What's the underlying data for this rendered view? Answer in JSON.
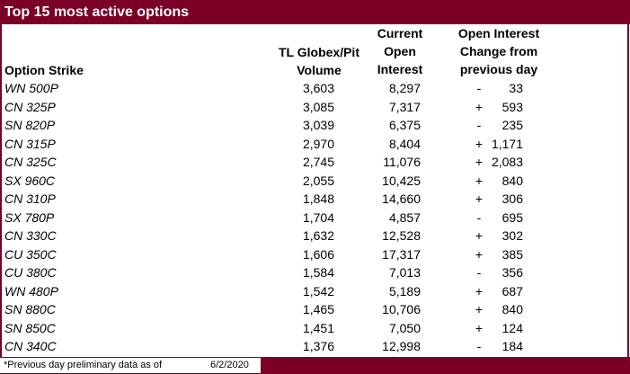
{
  "title": "Top 15 most active options",
  "headers": {
    "strike": "Option Strike",
    "volume_line1": "TL Globex/Pit",
    "volume_line2": "Volume",
    "oi_line1": "Current",
    "oi_line2": "Open",
    "oi_line3": "Interest",
    "chg_line1": "Open Interest",
    "chg_line2": "Change from",
    "chg_line3": "previous day"
  },
  "rows": [
    {
      "strike": "WN 500P",
      "volume": "3,603",
      "oi": "8,297",
      "sign": "-",
      "change": "33"
    },
    {
      "strike": "CN 325P",
      "volume": "3,085",
      "oi": "7,317",
      "sign": "+",
      "change": "593"
    },
    {
      "strike": "SN 820P",
      "volume": "3,039",
      "oi": "6,375",
      "sign": "-",
      "change": "235"
    },
    {
      "strike": "CN 315P",
      "volume": "2,970",
      "oi": "8,404",
      "sign": "+",
      "change": "1,171"
    },
    {
      "strike": "CN 325C",
      "volume": "2,745",
      "oi": "11,076",
      "sign": "+",
      "change": "2,083"
    },
    {
      "strike": "SX 960C",
      "volume": "2,055",
      "oi": "10,425",
      "sign": "+",
      "change": "840"
    },
    {
      "strike": "CN 310P",
      "volume": "1,848",
      "oi": "14,660",
      "sign": "+",
      "change": "306"
    },
    {
      "strike": "SX 780P",
      "volume": "1,704",
      "oi": "4,857",
      "sign": "-",
      "change": "695"
    },
    {
      "strike": "CN 330C",
      "volume": "1,632",
      "oi": "12,528",
      "sign": "+",
      "change": "302"
    },
    {
      "strike": "CU 350C",
      "volume": "1,606",
      "oi": "17,317",
      "sign": "+",
      "change": "385"
    },
    {
      "strike": "CU 380C",
      "volume": "1,584",
      "oi": "7,013",
      "sign": "-",
      "change": "356"
    },
    {
      "strike": "WN 480P",
      "volume": "1,542",
      "oi": "5,189",
      "sign": "+",
      "change": "687"
    },
    {
      "strike": "SN 880C",
      "volume": "1,465",
      "oi": "10,706",
      "sign": "+",
      "change": "840"
    },
    {
      "strike": "SN 850C",
      "volume": "1,451",
      "oi": "7,050",
      "sign": "+",
      "change": "124"
    },
    {
      "strike": "CN 340C",
      "volume": "1,376",
      "oi": "12,998",
      "sign": "-",
      "change": "184"
    }
  ],
  "footer": {
    "note": "*Previous day preliminary data as of",
    "date": "6/2/2020"
  },
  "colors": {
    "brand": "#7a0026"
  }
}
